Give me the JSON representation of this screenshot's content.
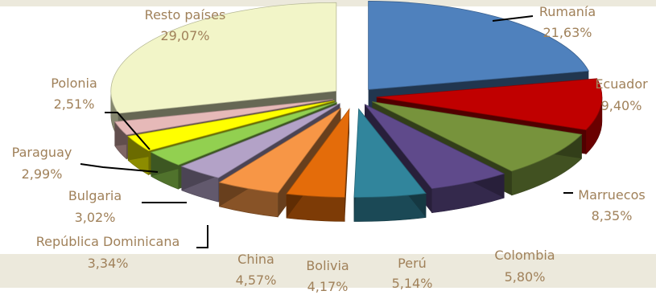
{
  "chart_data": {
    "type": "pie",
    "style": "3d-exploded",
    "label_color": "#a0815a",
    "categories": [
      "Rumanía",
      "Ecuador",
      "Marruecos",
      "Colombia",
      "Perú",
      "Bolivia",
      "China",
      "República Dominicana",
      "Bulgaria",
      "Paraguay",
      "Polonia",
      "Resto países"
    ],
    "values": [
      21.63,
      9.4,
      8.35,
      5.8,
      5.14,
      4.17,
      4.57,
      3.34,
      3.02,
      2.99,
      2.51,
      29.07
    ],
    "value_labels": [
      "21,63%",
      "9,40%",
      "8,35%",
      "5,80%",
      "5,14%",
      "4,17%",
      "4,57%",
      "3,34%",
      "3,02%",
      "2,99%",
      "2,51%",
      "29,07%"
    ],
    "colors": [
      "#4f81bd",
      "#c00000",
      "#77933c",
      "#5f4a8b",
      "#31859c",
      "#e46c0a",
      "#f79646",
      "#b3a2c7",
      "#92d050",
      "#ffff00",
      "#e6b9b8",
      "#f2f5c8"
    ]
  }
}
